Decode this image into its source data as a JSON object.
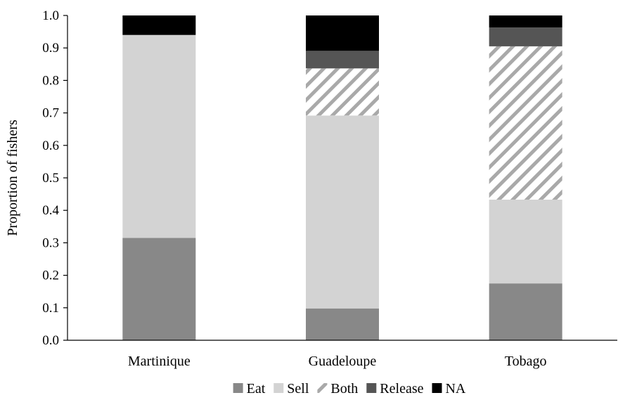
{
  "chart_data": {
    "type": "bar",
    "stacked": true,
    "ylabel": "Proportion of fishers",
    "xlabel": "",
    "ylim": [
      0,
      1.0
    ],
    "yticks": [
      "0.0",
      "0.1",
      "0.2",
      "0.3",
      "0.4",
      "0.5",
      "0.6",
      "0.7",
      "0.8",
      "0.9",
      "1.0"
    ],
    "grid": false,
    "legend_position": "bottom",
    "categories": [
      "Martinique",
      "Guadeloupe",
      "Tobago"
    ],
    "series": [
      {
        "name": "Eat",
        "values": [
          0.315,
          0.098,
          0.175
        ],
        "color": "#888888",
        "pattern": "solid"
      },
      {
        "name": "Sell",
        "values": [
          0.625,
          0.594,
          0.258
        ],
        "color": "#d3d3d3",
        "pattern": "solid"
      },
      {
        "name": "Both",
        "values": [
          0.0,
          0.145,
          0.472
        ],
        "color": "#d3d3d3",
        "pattern": "hatch"
      },
      {
        "name": "Release",
        "values": [
          0.0,
          0.054,
          0.058
        ],
        "color": "#555555",
        "pattern": "solid"
      },
      {
        "name": "NA",
        "values": [
          0.06,
          0.109,
          0.037
        ],
        "color": "#000000",
        "pattern": "solid"
      }
    ]
  }
}
